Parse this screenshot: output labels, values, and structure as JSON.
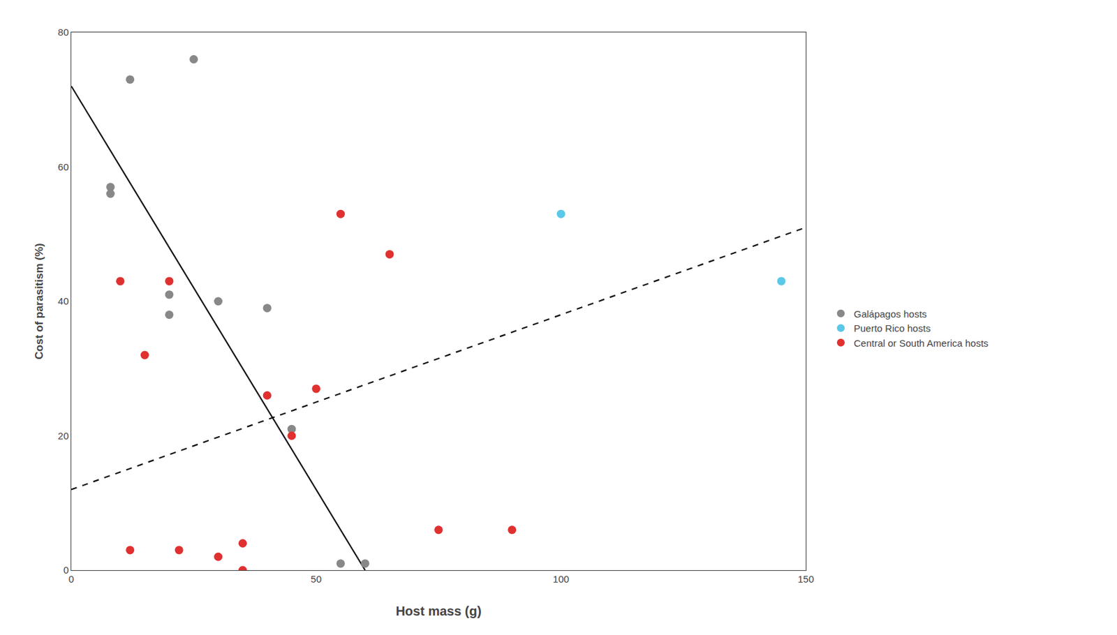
{
  "chart_data": {
    "type": "scatter",
    "xlabel": "Host mass (g)",
    "ylabel": "Cost of parasitism (%)",
    "xlim": [
      0,
      150
    ],
    "ylim": [
      0,
      80
    ],
    "xticks": [
      0,
      50,
      100,
      150
    ],
    "yticks": [
      0,
      20,
      40,
      60,
      80
    ],
    "grid": false,
    "legend": "right",
    "series": [
      {
        "type": "line",
        "line_style": "solid",
        "color": "#111111",
        "x": [
          0,
          60
        ],
        "values": [
          72,
          0
        ]
      },
      {
        "type": "line",
        "line_style": "dashed",
        "color": "#111111",
        "x": [
          0,
          150
        ],
        "values": [
          12,
          51
        ]
      },
      {
        "type": "scatter",
        "marker": "circle",
        "name": "Galápagos hosts",
        "color": "#888888",
        "x": [
          8,
          12,
          25,
          8,
          20,
          20,
          30,
          40,
          45,
          55,
          60
        ],
        "values": [
          56,
          73,
          76,
          57,
          41,
          38,
          40,
          39,
          21,
          1,
          1
        ]
      },
      {
        "type": "scatter",
        "marker": "circle",
        "name": "Puerto Rico hosts",
        "color": "#5bc8e8",
        "x": [
          100,
          145
        ],
        "values": [
          53,
          43
        ]
      },
      {
        "type": "scatter",
        "marker": "circle",
        "name": "Central or South America hosts",
        "color": "#e03030",
        "x": [
          10,
          12,
          15,
          20,
          22,
          30,
          35,
          35,
          40,
          45,
          50,
          55,
          65,
          75,
          90
        ],
        "values": [
          43,
          3,
          32,
          43,
          3,
          2,
          0,
          4,
          26,
          20,
          27,
          53,
          47,
          6,
          6
        ]
      }
    ]
  }
}
